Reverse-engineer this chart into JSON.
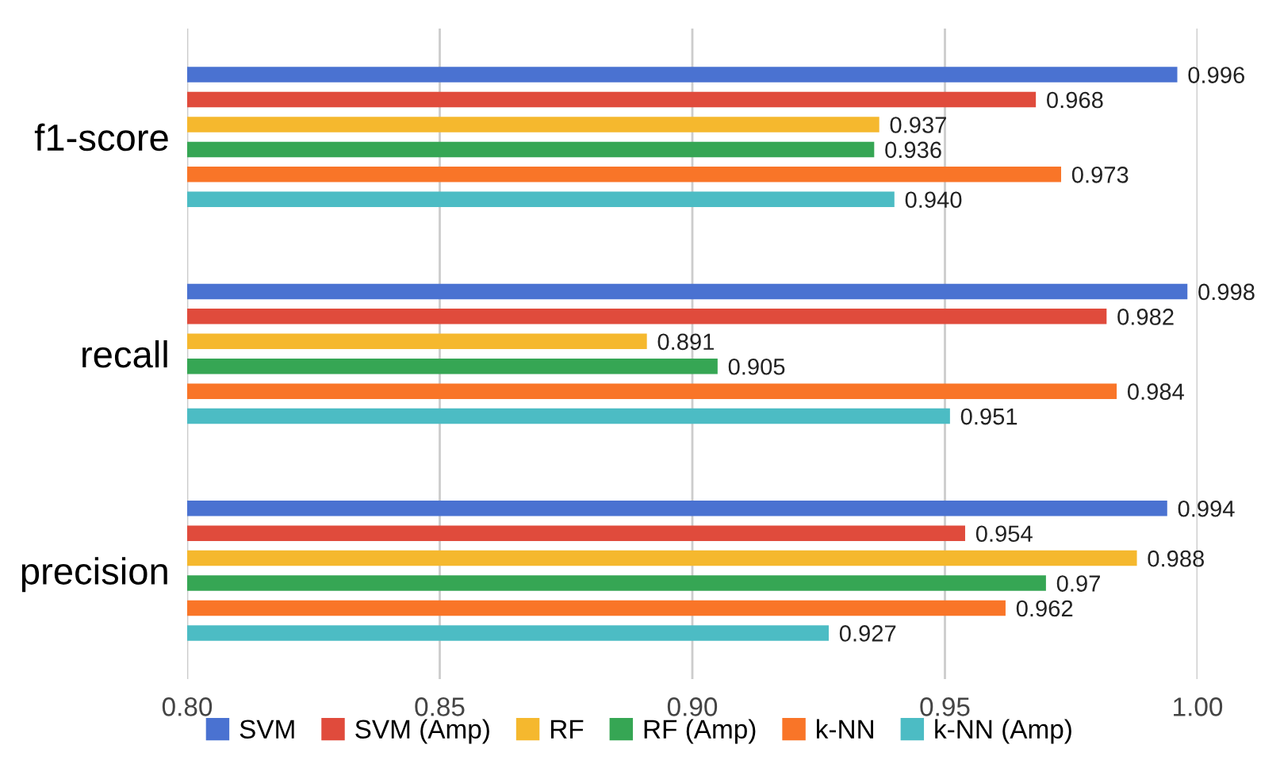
{
  "chart_data": {
    "type": "bar",
    "orientation": "horizontal",
    "categories": [
      "f1-score",
      "recall",
      "precision"
    ],
    "series": [
      {
        "name": "SVM",
        "color": "#4a72d1",
        "values": [
          0.996,
          0.998,
          0.994
        ],
        "value_labels": [
          "0.996",
          "0.998",
          "0.994"
        ]
      },
      {
        "name": "SVM (Amp)",
        "color": "#e04b3c",
        "values": [
          0.968,
          0.982,
          0.954
        ],
        "value_labels": [
          "0.968",
          "0.982",
          "0.954"
        ]
      },
      {
        "name": "RF",
        "color": "#f5b82e",
        "values": [
          0.937,
          0.891,
          0.988
        ],
        "value_labels": [
          "0.937",
          "0.891",
          "0.988"
        ]
      },
      {
        "name": "RF (Amp)",
        "color": "#36a654",
        "values": [
          0.936,
          0.905,
          0.97
        ],
        "value_labels": [
          "0.936",
          "0.905",
          "0.97"
        ]
      },
      {
        "name": "k-NN",
        "color": "#f97528",
        "values": [
          0.973,
          0.984,
          0.962
        ],
        "value_labels": [
          "0.973",
          "0.984",
          "0.962"
        ]
      },
      {
        "name": "k-NN (Amp)",
        "color": "#4cbcc4",
        "values": [
          0.94,
          0.951,
          0.927
        ],
        "value_labels": [
          "0.940",
          "0.951",
          "0.927"
        ]
      }
    ],
    "xlim": [
      0.8,
      1.0
    ],
    "xticks": [
      {
        "value": 0.8,
        "label": "0.80"
      },
      {
        "value": 0.85,
        "label": "0.85"
      },
      {
        "value": 0.9,
        "label": "0.90"
      },
      {
        "value": 0.95,
        "label": "0.95"
      },
      {
        "value": 1.0,
        "label": "1.00"
      }
    ],
    "grid": "x",
    "legend": "bottom"
  }
}
